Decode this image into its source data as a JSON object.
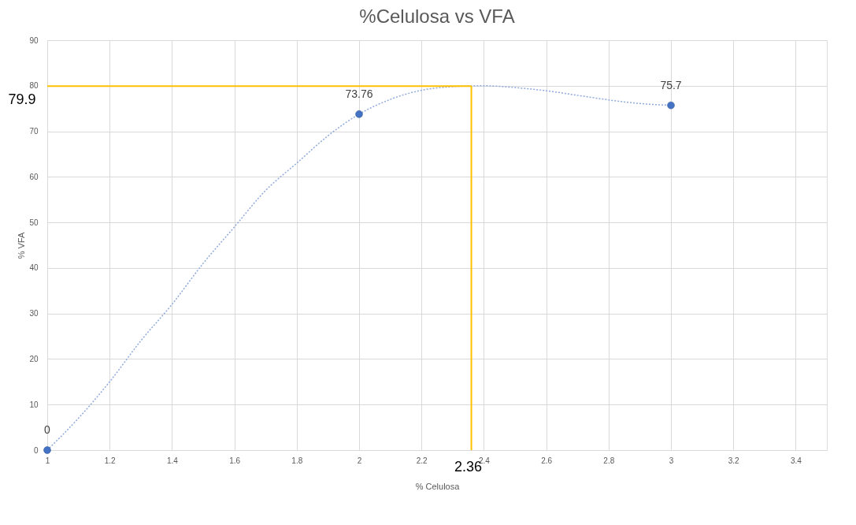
{
  "chart_data": {
    "type": "scatter",
    "title": "%Celulosa vs VFA",
    "xlabel": "% Celulosa",
    "ylabel": "% VFA",
    "xlim": [
      1,
      3.5
    ],
    "xticks": [
      1,
      1.2,
      1.4,
      1.6,
      1.8,
      2,
      2.2,
      2.4,
      2.6,
      2.8,
      3,
      3.2,
      3.4
    ],
    "ylim": [
      0,
      90
    ],
    "yticks": [
      0,
      10,
      20,
      30,
      40,
      50,
      60,
      70,
      80,
      90
    ],
    "grid": true,
    "series": [
      {
        "type": "line",
        "color": "#8faadc",
        "line_style": "dotted",
        "marker": "none",
        "x": [
          1,
          1.1,
          1.2,
          1.3,
          1.4,
          1.5,
          1.6,
          1.7,
          1.8,
          1.9,
          2,
          2.1,
          2.2,
          2.3,
          2.4,
          2.5,
          2.6,
          2.7,
          2.8,
          2.9,
          3
        ],
        "values": [
          0,
          7,
          15,
          24,
          32,
          41,
          49,
          57,
          63,
          69,
          73.76,
          77,
          79,
          79.8,
          80,
          79.6,
          78.9,
          77.9,
          76.9,
          76.1,
          75.7
        ]
      },
      {
        "color": "#4472c4",
        "marker": "circle",
        "x": [
          1,
          2,
          3
        ],
        "values": [
          0,
          73.76,
          75.7
        ],
        "value_labels": [
          "0",
          "73.76",
          "75.7"
        ]
      }
    ],
    "ref_lines": [
      {
        "axis": "x",
        "value": 2.36,
        "label": "2.36",
        "color": "#ffc000"
      },
      {
        "axis": "y",
        "value": 79.9,
        "label": "79.9",
        "color": "#ffc000"
      }
    ]
  }
}
